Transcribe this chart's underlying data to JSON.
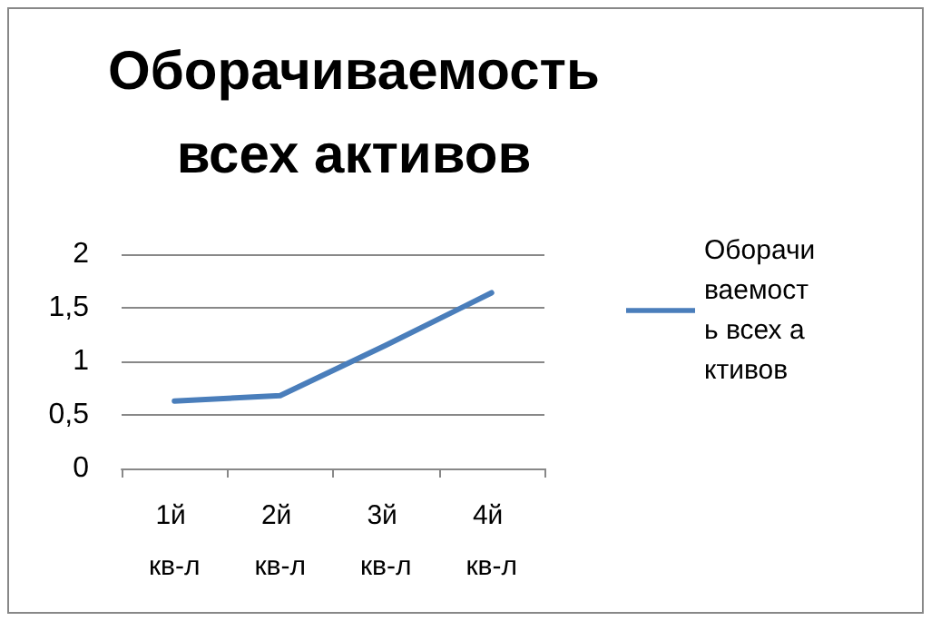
{
  "chart_data": {
    "type": "line",
    "title": "Оборачиваемость всех активов",
    "categories": [
      "1й кв-л",
      "2й кв-л",
      "3й кв-л",
      "4й кв-л"
    ],
    "series": [
      {
        "name": "Оборачиваемость всех активов",
        "color": "#4a7ebb",
        "values": [
          0.63,
          0.68,
          1.15,
          1.64
        ]
      }
    ],
    "ylim": [
      0,
      2
    ],
    "yticks": [
      0,
      {
        "value": 0.5,
        "label": "0,5"
      },
      1,
      {
        "value": 1.5,
        "label": "1,5"
      },
      2
    ],
    "grid": "y",
    "legend": "right",
    "marker": "none",
    "line_style": "solid"
  }
}
